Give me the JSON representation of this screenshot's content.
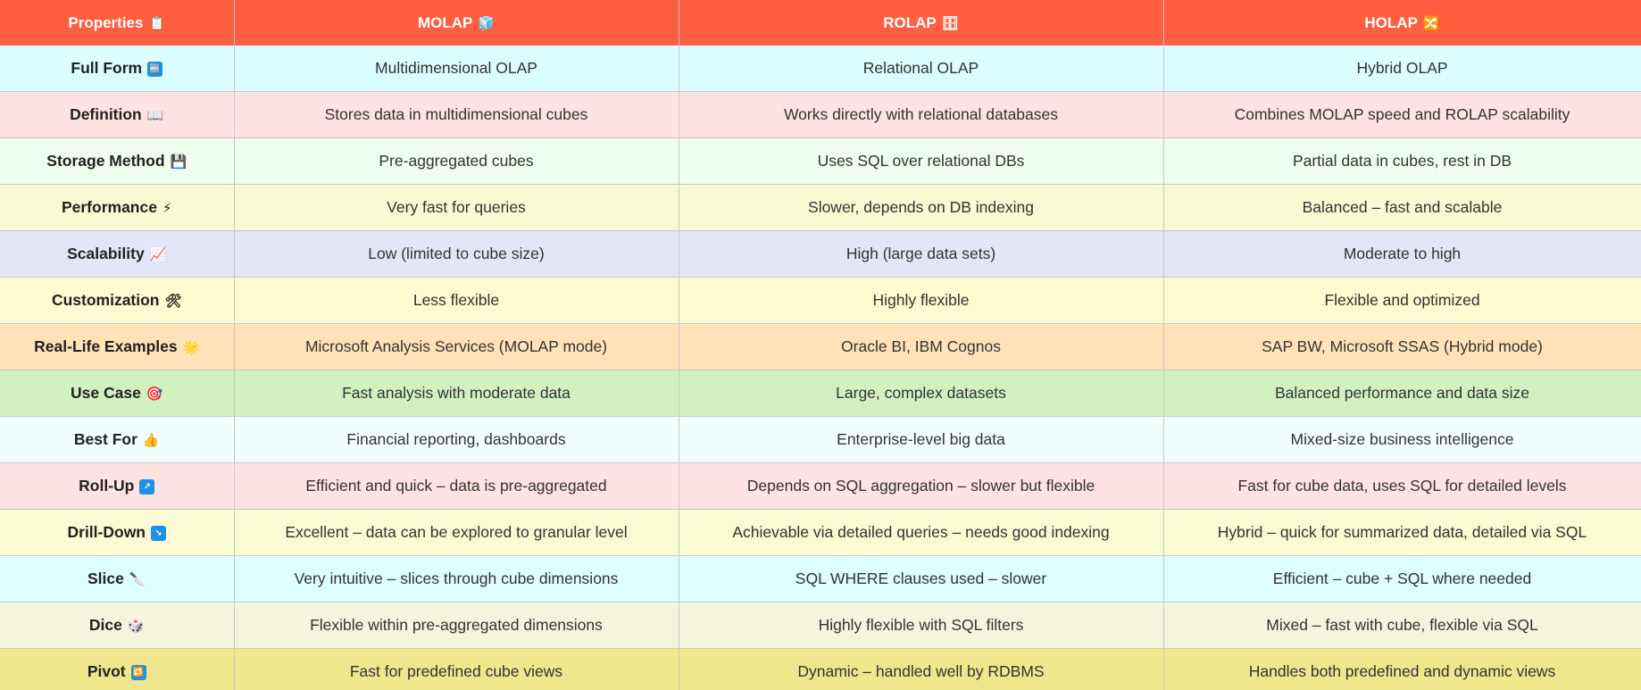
{
  "header": {
    "properties": "Properties",
    "properties_icon": "📋",
    "molap": "MOLAP",
    "molap_icon": "🧊",
    "rolap": "ROLAP",
    "rolap_icon": "🗄",
    "holap": "HOLAP",
    "holap_icon": "🔀"
  },
  "rows": [
    {
      "prop": "Full Form",
      "icon": "🔤",
      "box": true,
      "molap": "Multidimensional OLAP",
      "rolap": "Relational OLAP",
      "holap": "Hybrid OLAP",
      "bg": "#dcfdff"
    },
    {
      "prop": "Definition",
      "icon": "📖",
      "molap": "Stores data in multidimensional cubes",
      "rolap": "Works directly with relational databases",
      "holap": "Combines MOLAP speed and ROLAP scalability",
      "bg": "#ffe2e2"
    },
    {
      "prop": "Storage Method",
      "icon": "💾",
      "molap": "Pre-aggregated cubes",
      "rolap": "Uses SQL over relational DBs",
      "holap": "Partial data in cubes, rest in DB",
      "bg": "#effdef"
    },
    {
      "prop": "Performance",
      "icon": "⚡",
      "molap": "Very fast for queries",
      "rolap": "Slower, depends on DB indexing",
      "holap": "Balanced – fast and scalable",
      "bg": "#f9f9d3"
    },
    {
      "prop": "Scalability",
      "icon": "📈",
      "molap": "Low (limited to cube size)",
      "rolap": "High (large data sets)",
      "holap": "Moderate to high",
      "bg": "#e5e5f9"
    },
    {
      "prop": "Customization",
      "icon": "🛠",
      "molap": "Less flexible",
      "rolap": "Highly flexible",
      "holap": "Flexible and optimized",
      "bg": "#fdf9d0"
    },
    {
      "prop": "Real-Life Examples",
      "icon": "🌟",
      "molap": "Microsoft Analysis Services (MOLAP mode)",
      "rolap": "Oracle BI, IBM Cognos",
      "holap": "SAP BW, Microsoft SSAS (Hybrid mode)",
      "bg": "#ffe2b8"
    },
    {
      "prop": "Use Case",
      "icon": "🎯",
      "molap": "Fast analysis with moderate data",
      "rolap": "Large, complex datasets",
      "holap": "Balanced performance and data size",
      "bg": "#d1f1c1"
    },
    {
      "prop": "Best For",
      "icon": "👍",
      "molap": "Financial reporting, dashboards",
      "rolap": "Enterprise-level big data",
      "holap": "Mixed-size business intelligence",
      "bg": "#f2fdff"
    },
    {
      "prop": "Roll-Up",
      "icon": "↗",
      "box": true,
      "molap": "Efficient and quick – data is pre-aggregated",
      "rolap": "Depends on SQL aggregation – slower but flexible",
      "holap": "Fast for cube data, uses SQL for detailed levels",
      "bg": "#ffe2e2"
    },
    {
      "prop": "Drill-Down",
      "icon": "↘",
      "box": true,
      "molap": "Excellent – data can be explored to granular level",
      "rolap": "Achievable via detailed queries – needs good indexing",
      "holap": "Hybrid – quick for summarized data, detailed via SQL",
      "bg": "#fafad3"
    },
    {
      "prop": "Slice",
      "icon": "🔪",
      "molap": "Very intuitive – slices through cube dimensions",
      "rolap": "SQL WHERE clauses used – slower",
      "holap": "Efficient – cube + SQL where needed",
      "bg": "#defdff"
    },
    {
      "prop": "Dice",
      "icon": "🎲",
      "molap": "Flexible within pre-aggregated dimensions",
      "rolap": "Highly flexible with SQL filters",
      "holap": "Mixed – fast with cube, flexible via SQL",
      "bg": "#f5f5dc"
    },
    {
      "prop": "Pivot",
      "icon": "🔁",
      "box": true,
      "molap": "Fast for predefined cube views",
      "rolap": "Dynamic – handled well by RDBMS",
      "holap": "Handles both predefined and dynamic views",
      "bg": "#f0e68c"
    }
  ]
}
